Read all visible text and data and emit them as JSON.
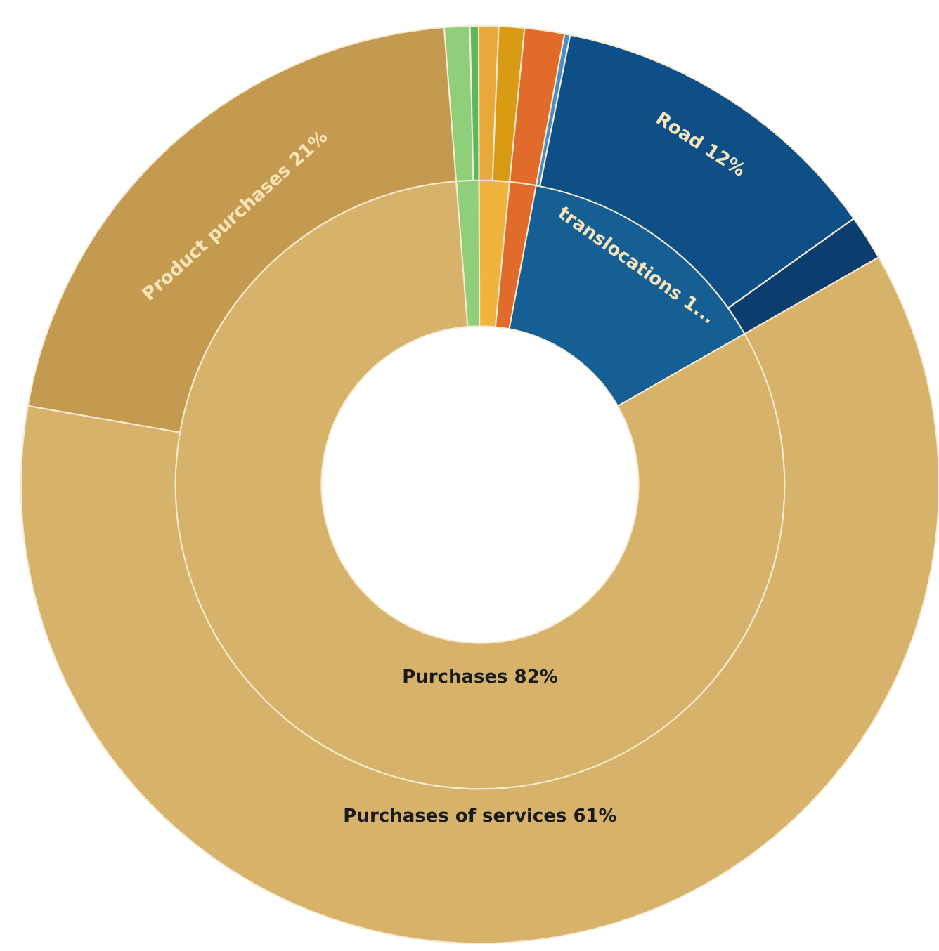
{
  "chart_data": {
    "type": "donut",
    "categories": [
      null,
      null,
      null,
      null,
      null,
      null,
      "Road",
      null,
      "Purchases of services",
      "Product purchases"
    ],
    "series": [
      {
        "values": [
          1.2,
          null,
          1.6,
          null,
          1.4,
          13.8,
          null,
          null,
          82,
          null
        ],
        "value_labels": [
          null,
          null,
          null,
          null,
          null,
          "translocations 1...",
          null,
          null,
          "Purchases 82%",
          null
        ],
        "colors": [
          "#8fcf7a",
          null,
          "#f0b43c",
          null,
          "#e06b2a",
          "#155f94",
          null,
          null,
          "#d7b26a",
          null
        ]
      },
      {
        "values": [
          0.9,
          0.3,
          0.7,
          0.9,
          1.4,
          0.2,
          12,
          1.6,
          61,
          21
        ],
        "value_labels": [
          null,
          null,
          null,
          null,
          null,
          null,
          "12%",
          null,
          "61%",
          "21%"
        ],
        "colors": [
          "#8fcf7a",
          "#5cb85c",
          "#e8a93a",
          "#d99a14",
          "#e06b2a",
          "#4a90c8",
          "#0d4f86",
          "#0b3d6e",
          "#d7b26a",
          "#c49a50"
        ]
      }
    ]
  }
}
